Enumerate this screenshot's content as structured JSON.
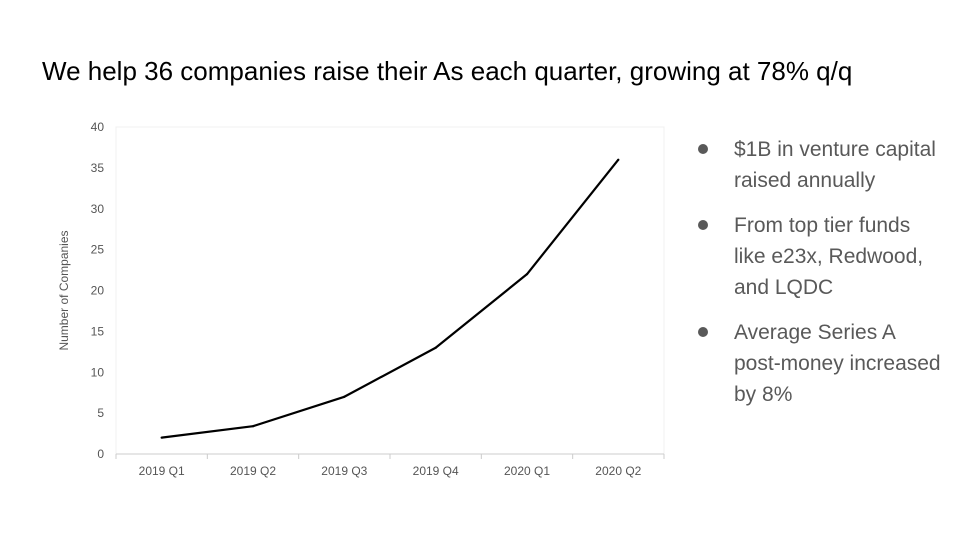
{
  "slide": {
    "title": "We help 36 companies raise their As each quarter, growing at 78% q/q"
  },
  "chart_data": {
    "type": "line",
    "categories": [
      "2019 Q1",
      "2019 Q2",
      "2019 Q3",
      "2019 Q4",
      "2020 Q1",
      "2020 Q2"
    ],
    "series": [
      {
        "values": [
          2,
          3.4,
          7,
          13,
          22,
          36
        ]
      }
    ],
    "ylabel": "Number of Companies",
    "xlabel": "",
    "ylim": [
      0,
      40
    ],
    "yticks": [
      0,
      5,
      10,
      15,
      20,
      25,
      30,
      35,
      40
    ],
    "grid": false,
    "line_color": "#000000"
  },
  "bullets": [
    {
      "text": "$1B in venture capital raised annually"
    },
    {
      "text": "From top tier funds like e23x, Redwood, and LQDC"
    },
    {
      "text": "Average Series A post-money increased by 8%"
    }
  ]
}
